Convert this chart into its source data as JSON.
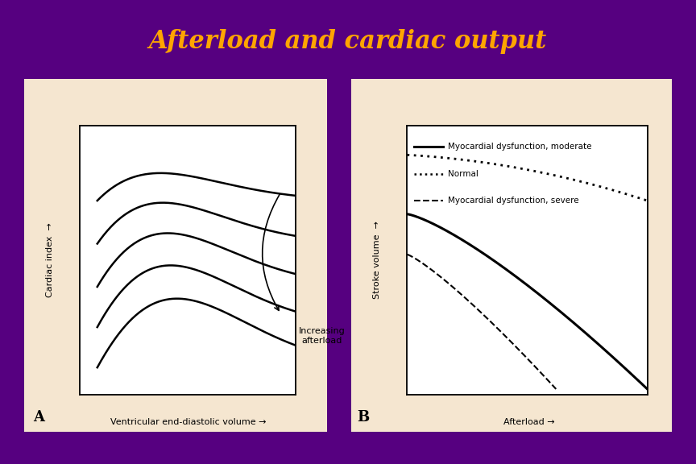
{
  "title": "Afterload and cardiac output",
  "title_color": "#FFA500",
  "title_fontsize": 22,
  "bg_color": "#560080",
  "panel_bg": "#F5E6D0",
  "plot_bg": "#FFFFFF",
  "panel_A_xlabel": "Ventricular end-diastolic volume →",
  "panel_A_ylabel": "Cardiac index  →",
  "panel_A_label": "A",
  "panel_A_annotation": "Increasing\nafterload",
  "panel_B_xlabel": "Afterload →",
  "panel_B_ylabel": "Stroke volume  →",
  "panel_B_label": "B",
  "legend_lines": [
    {
      "label": "Myocardial dysfunction, moderate",
      "style": "solid",
      "lw": 2.2
    },
    {
      "label": "Normal",
      "style": "dotted",
      "lw": 1.8
    },
    {
      "label": "Myocardial dysfunction, severe",
      "style": "dashed",
      "lw": 1.5
    }
  ]
}
